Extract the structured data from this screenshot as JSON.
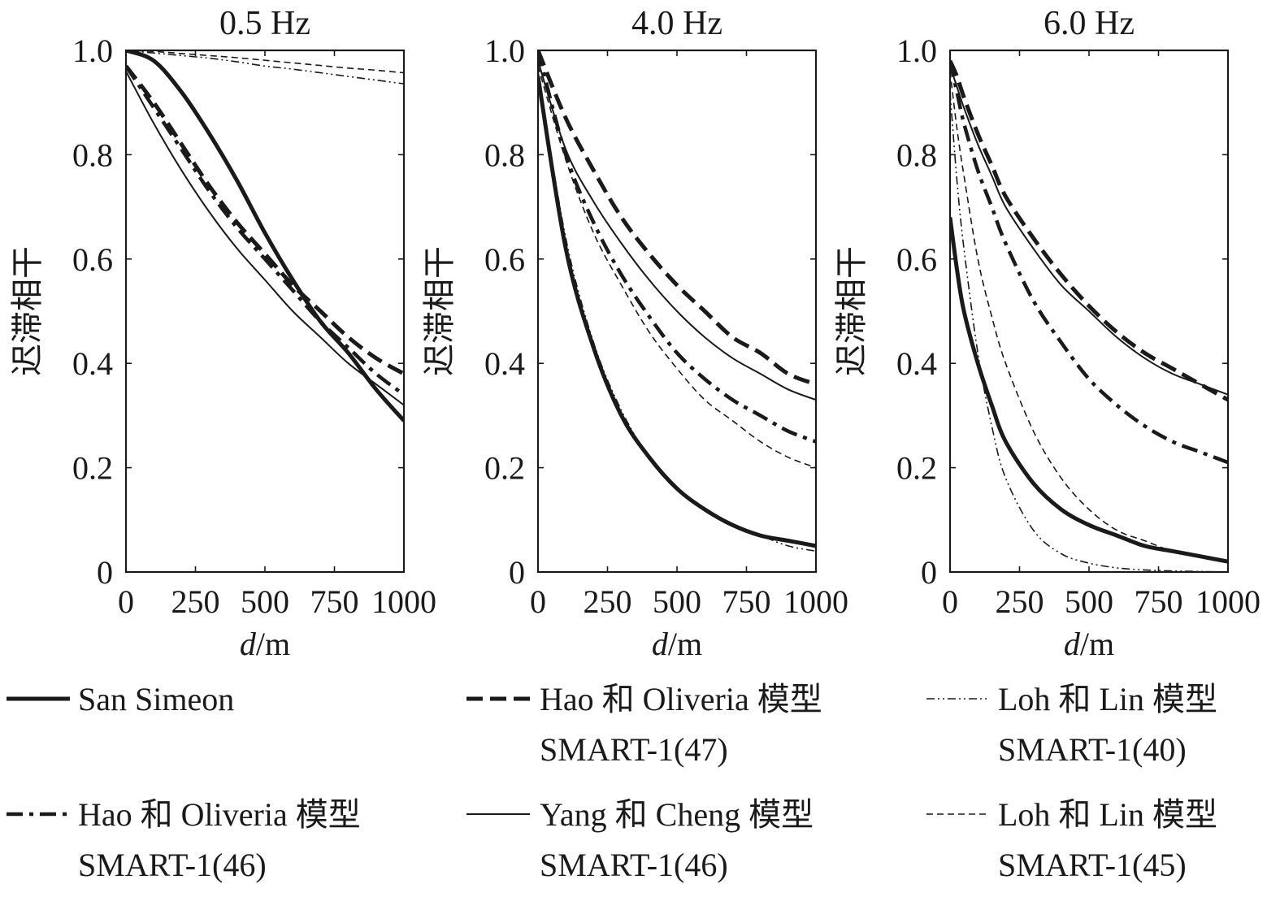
{
  "chart_data": [
    {
      "type": "line",
      "title": "0.5 Hz",
      "xlabel_italic": "d",
      "xlabel_unit": "/m",
      "ylabel": "迟滞相干",
      "xlim": [
        0,
        1000
      ],
      "ylim": [
        0,
        1.0
      ],
      "xticks": [
        "0",
        "250",
        "500",
        "750",
        "1000"
      ],
      "yticks": [
        "0",
        "0.2",
        "0.4",
        "0.6",
        "0.8",
        "1.0"
      ],
      "x": [
        0,
        100,
        200,
        300,
        400,
        500,
        600,
        700,
        800,
        900,
        1000
      ],
      "series": [
        {
          "key": "san_simeon",
          "values": [
            1.0,
            0.98,
            0.92,
            0.84,
            0.75,
            0.65,
            0.56,
            0.48,
            0.42,
            0.35,
            0.29
          ]
        },
        {
          "key": "hao_47",
          "values": [
            0.97,
            0.9,
            0.82,
            0.74,
            0.67,
            0.61,
            0.55,
            0.5,
            0.45,
            0.41,
            0.38
          ]
        },
        {
          "key": "hao_46",
          "values": [
            0.97,
            0.89,
            0.81,
            0.73,
            0.66,
            0.6,
            0.54,
            0.48,
            0.43,
            0.38,
            0.34
          ]
        },
        {
          "key": "yang_46",
          "values": [
            0.96,
            0.86,
            0.77,
            0.69,
            0.62,
            0.56,
            0.5,
            0.45,
            0.4,
            0.36,
            0.32
          ]
        },
        {
          "key": "loh_40",
          "values": [
            1.0,
            0.995,
            0.99,
            0.985,
            0.978,
            0.97,
            0.964,
            0.957,
            0.95,
            0.943,
            0.936
          ]
        },
        {
          "key": "loh_45",
          "values": [
            1.0,
            0.998,
            0.994,
            0.99,
            0.986,
            0.981,
            0.976,
            0.971,
            0.966,
            0.962,
            0.957
          ]
        }
      ]
    },
    {
      "type": "line",
      "title": "4.0 Hz",
      "xlabel_italic": "d",
      "xlabel_unit": "/m",
      "ylabel": "迟滞相干",
      "xlim": [
        0,
        1000
      ],
      "ylim": [
        0,
        1.0
      ],
      "xticks": [
        "0",
        "250",
        "500",
        "750",
        "1000"
      ],
      "yticks": [
        "0",
        "0.2",
        "0.4",
        "0.6",
        "0.8",
        "1.0"
      ],
      "x": [
        0,
        100,
        200,
        300,
        400,
        500,
        600,
        700,
        800,
        900,
        1000
      ],
      "series": [
        {
          "key": "san_simeon",
          "values": [
            0.95,
            0.62,
            0.43,
            0.3,
            0.22,
            0.16,
            0.12,
            0.09,
            0.07,
            0.06,
            0.05
          ]
        },
        {
          "key": "hao_47",
          "values": [
            1.0,
            0.87,
            0.77,
            0.68,
            0.61,
            0.55,
            0.5,
            0.45,
            0.42,
            0.38,
            0.36
          ]
        },
        {
          "key": "hao_46",
          "values": [
            1.0,
            0.8,
            0.67,
            0.57,
            0.49,
            0.42,
            0.37,
            0.33,
            0.3,
            0.27,
            0.25
          ]
        },
        {
          "key": "yang_46",
          "values": [
            0.98,
            0.81,
            0.71,
            0.63,
            0.56,
            0.5,
            0.45,
            0.41,
            0.38,
            0.35,
            0.33
          ]
        },
        {
          "key": "loh_40",
          "values": [
            0.96,
            0.64,
            0.44,
            0.31,
            0.22,
            0.16,
            0.12,
            0.09,
            0.07,
            0.05,
            0.04
          ]
        },
        {
          "key": "loh_45",
          "values": [
            0.97,
            0.79,
            0.65,
            0.55,
            0.46,
            0.39,
            0.33,
            0.29,
            0.25,
            0.22,
            0.2
          ]
        }
      ]
    },
    {
      "type": "line",
      "title": "6.0 Hz",
      "xlabel_italic": "d",
      "xlabel_unit": "/m",
      "ylabel": "迟滞相干",
      "xlim": [
        0,
        1000
      ],
      "ylim": [
        0,
        1.0
      ],
      "xticks": [
        "0",
        "250",
        "500",
        "750",
        "1000"
      ],
      "yticks": [
        "0",
        "0.2",
        "0.4",
        "0.6",
        "0.8",
        "1.0"
      ],
      "x": [
        0,
        25,
        50,
        100,
        150,
        200,
        300,
        400,
        500,
        600,
        700,
        800,
        900,
        1000
      ],
      "series": [
        {
          "key": "san_simeon",
          "values": [
            0.68,
            0.58,
            0.5,
            0.4,
            0.32,
            0.25,
            0.17,
            0.12,
            0.09,
            0.07,
            0.05,
            0.04,
            0.03,
            0.02
          ]
        },
        {
          "key": "hao_47",
          "values": [
            0.98,
            0.95,
            0.91,
            0.84,
            0.78,
            0.72,
            0.64,
            0.57,
            0.51,
            0.46,
            0.42,
            0.39,
            0.36,
            0.33
          ]
        },
        {
          "key": "hao_46",
          "values": [
            0.98,
            0.92,
            0.86,
            0.77,
            0.7,
            0.63,
            0.52,
            0.44,
            0.37,
            0.32,
            0.28,
            0.25,
            0.23,
            0.21
          ]
        },
        {
          "key": "yang_46",
          "values": [
            0.97,
            0.93,
            0.89,
            0.82,
            0.76,
            0.7,
            0.62,
            0.55,
            0.5,
            0.45,
            0.41,
            0.38,
            0.36,
            0.34
          ]
        },
        {
          "key": "loh_40",
          "values": [
            0.92,
            0.75,
            0.62,
            0.42,
            0.28,
            0.18,
            0.08,
            0.035,
            0.017,
            0.008,
            0.004,
            0.002,
            0.001,
            0.0
          ]
        },
        {
          "key": "loh_45",
          "values": [
            0.96,
            0.85,
            0.76,
            0.6,
            0.49,
            0.4,
            0.27,
            0.18,
            0.12,
            0.08,
            0.06,
            0.04,
            0.03,
            0.02
          ]
        }
      ]
    }
  ],
  "legend": [
    {
      "key": "san_simeon",
      "line1": "San Simeon",
      "line2": ""
    },
    {
      "key": "hao_47",
      "line1": "Hao 和 Oliveria 模型",
      "line2": "SMART-1(47)"
    },
    {
      "key": "loh_40",
      "line1": "Loh 和 Lin 模型",
      "line2": "SMART-1(40)"
    },
    {
      "key": "hao_46",
      "line1": "Hao 和 Oliveria 模型",
      "line2": "SMART-1(46)"
    },
    {
      "key": "yang_46",
      "line1": "Yang 和 Cheng 模型",
      "line2": "SMART-1(46)"
    },
    {
      "key": "loh_45",
      "line1": "Loh 和 Lin 模型",
      "line2": "SMART-1(45)"
    }
  ],
  "line_styles": {
    "san_simeon": {
      "width": 5,
      "dash": ""
    },
    "hao_47": {
      "width": 5,
      "dash": "20 9"
    },
    "hao_46": {
      "width": 4.5,
      "dash": "20 8 5 8"
    },
    "yang_46": {
      "width": 2,
      "dash": ""
    },
    "loh_40": {
      "width": 1.6,
      "dash": "10 4 2 4 2 4"
    },
    "loh_45": {
      "width": 1.6,
      "dash": "8 5"
    }
  },
  "colors": {
    "line": "#1a1a1a",
    "background": "#ffffff"
  }
}
